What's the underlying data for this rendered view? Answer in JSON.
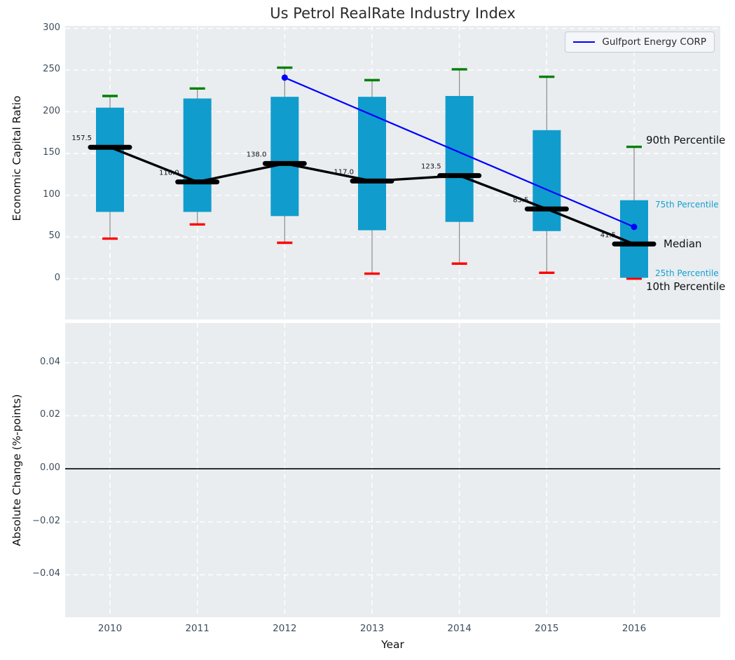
{
  "figure": {
    "title": "Us Petrol RealRate Industry Index"
  },
  "legend": {
    "label": "Gulfport Energy CORP"
  },
  "axes_top": {
    "ylabel": "Economic Capital Ratio",
    "yticks": [
      "300",
      "250",
      "200",
      "150",
      "100",
      "50",
      "0"
    ],
    "ytick_values": [
      300,
      250,
      200,
      150,
      100,
      50,
      0
    ],
    "ylim": [
      -49,
      303
    ]
  },
  "axes_bottom": {
    "ylabel": "Absolute Change (%-points)",
    "xlabel": "Year",
    "yticks": [
      "0.04",
      "0.02",
      "0.00",
      "−0.02",
      "−0.04"
    ],
    "ytick_values": [
      0.04,
      0.02,
      0.0,
      -0.02,
      -0.04
    ],
    "ylim": [
      -0.056,
      0.055
    ],
    "zero_line": 0.0
  },
  "annotations": {
    "p90": "90th Percentile",
    "p75": "75th Percentile",
    "median": "Median",
    "p25": "25th Percentile",
    "p10": "10th Percentile"
  },
  "chart_data": {
    "type": "box",
    "title": "Us Petrol RealRate Industry Index",
    "xlabel": "Year",
    "ylabel_top": "Economic Capital Ratio",
    "ylabel_bottom": "Absolute Change (%-points)",
    "categories": [
      2010,
      2011,
      2012,
      2013,
      2014,
      2015,
      2016
    ],
    "series": [
      {
        "name": "90th Percentile",
        "role": "whisker_high",
        "values": [
          219,
          228,
          253,
          238,
          251,
          242,
          158
        ]
      },
      {
        "name": "75th Percentile",
        "role": "box_top",
        "values": [
          205,
          216,
          218,
          218,
          219,
          178,
          94
        ]
      },
      {
        "name": "Median",
        "role": "median",
        "values": [
          157.5,
          116.0,
          138.0,
          117.0,
          123.5,
          83.5,
          41.5
        ]
      },
      {
        "name": "25th Percentile",
        "role": "box_bottom",
        "values": [
          80,
          80,
          75,
          58,
          68,
          57,
          1
        ]
      },
      {
        "name": "10th Percentile",
        "role": "whisker_low",
        "values": [
          48,
          65,
          43,
          6,
          18,
          7,
          0
        ]
      }
    ],
    "median_labels": [
      "157.5",
      "116.0",
      "138.0",
      "117.0",
      "123.5",
      "83.5",
      "41.5"
    ],
    "overlay_line": {
      "name": "Gulfport Energy CORP",
      "x": [
        2012,
        2016
      ],
      "values": [
        241,
        62
      ]
    },
    "ylim_top": [
      -49,
      303
    ],
    "ylim_bottom": [
      -0.056,
      0.055
    ],
    "grid": "white dashed, on both axes",
    "legend_position": "upper right",
    "colors": {
      "box_fill": "#109ccd",
      "whisker": "#8a8a8a",
      "cap_high": "#008000",
      "cap_low": "#ff0000",
      "median": "#000000",
      "median_line": "#000000",
      "overlay_line": "#0000ff",
      "grid": "#ffffff",
      "axes_background": "#e9edf0",
      "tick_label": "#3e4e5e",
      "percentile_label_accent": "#16a0cf",
      "zero_line": "#000000"
    }
  }
}
